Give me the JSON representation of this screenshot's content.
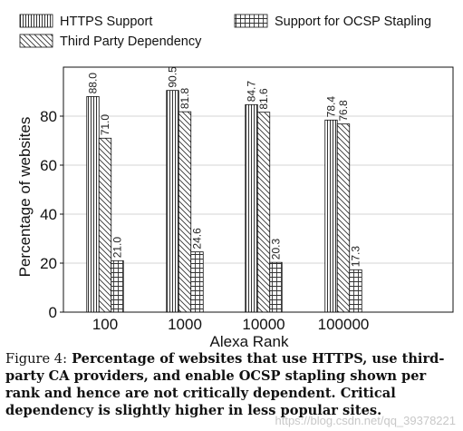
{
  "chart_data": {
    "type": "bar",
    "categories": [
      "100",
      "1000",
      "10000",
      "100000"
    ],
    "series": [
      {
        "name": "HTTPS Support",
        "values": [
          88.0,
          90.5,
          84.7,
          78.4
        ],
        "value_labels": [
          "88.0",
          "90.5",
          "84.7",
          "78.4"
        ],
        "pattern": "vertical"
      },
      {
        "name": "Third Party Dependency",
        "values": [
          71.0,
          81.8,
          81.6,
          76.8
        ],
        "value_labels": [
          "71.0",
          "81.8",
          "81.6",
          "76.8"
        ],
        "pattern": "diagonal"
      },
      {
        "name": "Support for OCSP Stapling",
        "values": [
          21.0,
          24.6,
          20.3,
          17.3
        ],
        "value_labels": [
          "21.0",
          "24.6",
          "20.3",
          "17.3"
        ],
        "pattern": "grid"
      }
    ],
    "xlabel": "Alexa Rank",
    "ylabel": "Percentage of websites",
    "ylim": [
      0,
      100
    ],
    "yticks": [
      0,
      20,
      40,
      60,
      80
    ],
    "grid": "horizontal",
    "legend": "top"
  },
  "caption": {
    "label": "Figure 4:",
    "text": "Percentage of websites that use HTTPS, use third-party CA providers, and enable OCSP stapling shown per rank and hence are not critically dependent. Critical dependency is slightly higher in less popular sites."
  },
  "watermark": "https://blog.csdn.net/qq_39378221"
}
